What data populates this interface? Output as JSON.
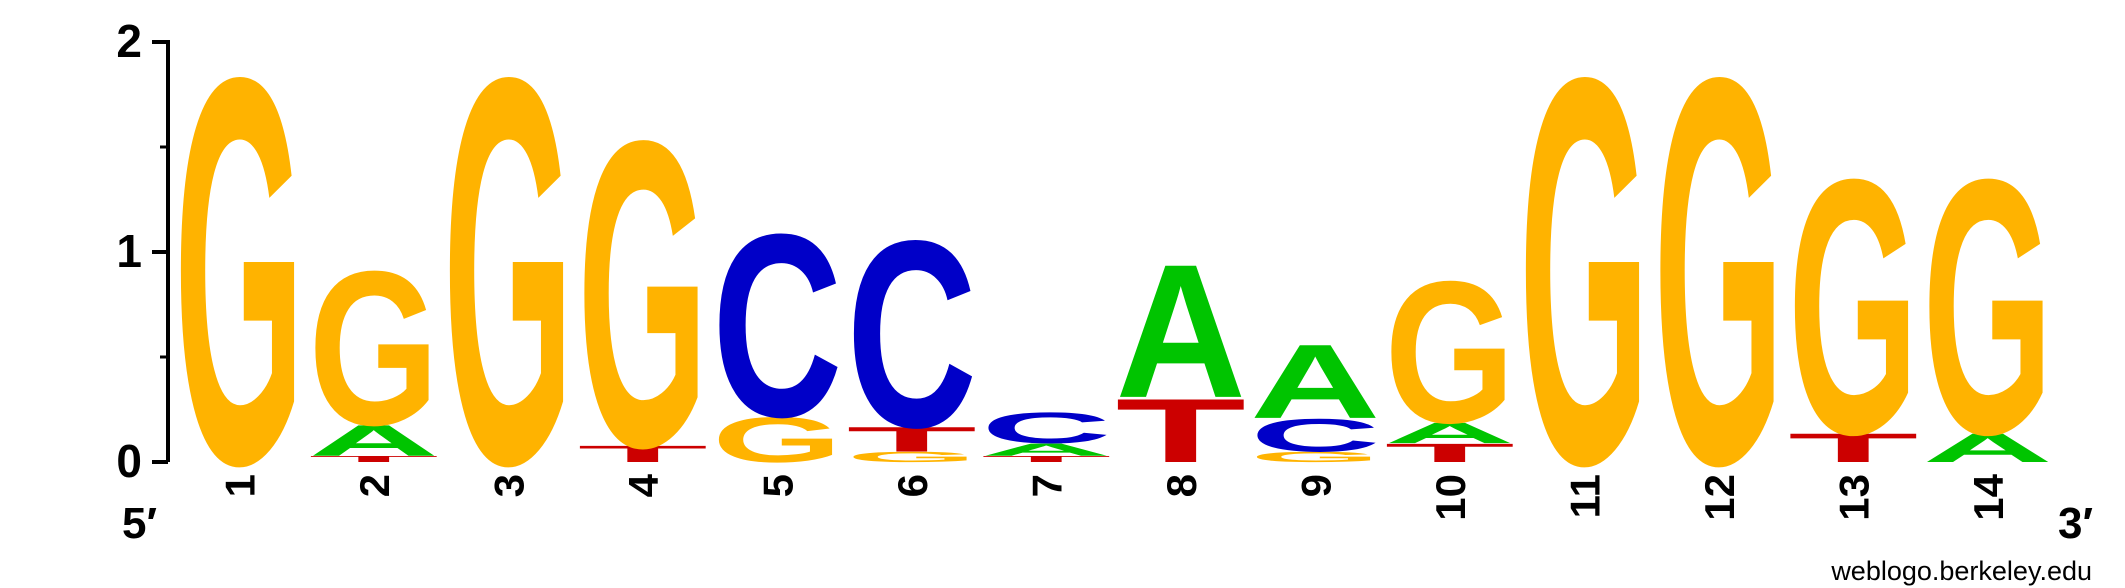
{
  "chart_data": {
    "type": "sequence-logo",
    "ylim": [
      0,
      2
    ],
    "y_ticks": [
      "0",
      "1",
      "2"
    ],
    "positions": [
      "1",
      "2",
      "3",
      "4",
      "5",
      "6",
      "7",
      "8",
      "9",
      "10",
      "11",
      "12",
      "13",
      "14"
    ],
    "end_labels": {
      "left": "5′",
      "right": "3′"
    },
    "stacks": [
      [
        {
          "letter": "G",
          "height": 1.88
        }
      ],
      [
        {
          "letter": "T",
          "height": 0.03
        },
        {
          "letter": "A",
          "height": 0.15
        },
        {
          "letter": "G",
          "height": 0.75
        }
      ],
      [
        {
          "letter": "G",
          "height": 1.88
        }
      ],
      [
        {
          "letter": "T",
          "height": 0.08
        },
        {
          "letter": "G",
          "height": 1.49
        }
      ],
      [
        {
          "letter": "G",
          "height": 0.22
        },
        {
          "letter": "C",
          "height": 0.89
        }
      ],
      [
        {
          "letter": "G",
          "height": 0.05
        },
        {
          "letter": "T",
          "height": 0.12
        },
        {
          "letter": "C",
          "height": 0.91
        }
      ],
      [
        {
          "letter": "T",
          "height": 0.03
        },
        {
          "letter": "A",
          "height": 0.06
        },
        {
          "letter": "C",
          "height": 0.15
        }
      ],
      [
        {
          "letter": "T",
          "height": 0.31
        },
        {
          "letter": "A",
          "height": 0.65
        }
      ],
      [
        {
          "letter": "G",
          "height": 0.05
        },
        {
          "letter": "C",
          "height": 0.16
        },
        {
          "letter": "A",
          "height": 0.36
        }
      ],
      [
        {
          "letter": "T",
          "height": 0.09
        },
        {
          "letter": "A",
          "height": 0.1
        },
        {
          "letter": "G",
          "height": 0.69
        }
      ],
      [
        {
          "letter": "G",
          "height": 1.88
        }
      ],
      [
        {
          "letter": "G",
          "height": 1.88
        }
      ],
      [
        {
          "letter": "T",
          "height": 0.14
        },
        {
          "letter": "G",
          "height": 1.24
        }
      ],
      [
        {
          "letter": "A",
          "height": 0.14
        },
        {
          "letter": "G",
          "height": 1.24
        }
      ]
    ]
  },
  "colors": {
    "A": "#00c400",
    "C": "#0000c8",
    "G": "#ffb300",
    "T": "#cc0000"
  },
  "credit": "weblogo.berkeley.edu"
}
